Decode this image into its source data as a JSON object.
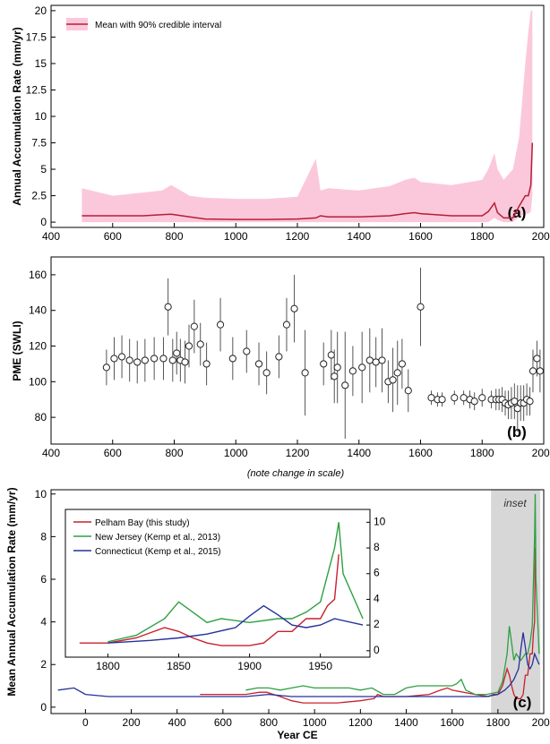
{
  "chart_data": [
    {
      "panel": "(a)",
      "type": "line",
      "ylabel": "Annual Accumulation Rate (mm/yr)",
      "xlim": [
        400,
        2000
      ],
      "ylim": [
        -0.5,
        20.5
      ],
      "x_ticks": [
        400,
        600,
        800,
        1000,
        1200,
        1400,
        1600,
        1800,
        2000
      ],
      "y_ticks": [
        "0",
        "2.5",
        "5",
        "7.5",
        "10",
        "12.5",
        "15",
        "17.5",
        "20"
      ],
      "y_tick_values": [
        0,
        2.5,
        5,
        7.5,
        10,
        12.5,
        15,
        17.5,
        20
      ],
      "legend": [
        "Mean with 90% credible interval"
      ],
      "series": [
        {
          "name": "Mean with 90% credible interval",
          "x": [
            500,
            600,
            700,
            760,
            790,
            850,
            900,
            1000,
            1100,
            1200,
            1260,
            1275,
            1300,
            1400,
            1500,
            1550,
            1580,
            1600,
            1700,
            1800,
            1820,
            1840,
            1850,
            1870,
            1900,
            1920,
            1940,
            1950,
            1958,
            1963
          ],
          "values": [
            0.6,
            0.6,
            0.6,
            0.7,
            0.75,
            0.5,
            0.3,
            0.25,
            0.25,
            0.3,
            0.4,
            0.6,
            0.5,
            0.5,
            0.6,
            0.8,
            0.9,
            0.8,
            0.6,
            0.6,
            1.0,
            1.8,
            0.9,
            0.4,
            0.4,
            1.5,
            2.5,
            2.5,
            3.5,
            7.5
          ],
          "upper": [
            3.2,
            2.5,
            2.8,
            3.0,
            3.5,
            2.5,
            2.3,
            2.2,
            2.2,
            2.4,
            6.0,
            3.0,
            3.2,
            3.0,
            3.4,
            4.0,
            4.2,
            3.8,
            3.5,
            4.0,
            5.0,
            6.5,
            5.0,
            4.0,
            5.0,
            8.0,
            15.0,
            18.0,
            20.0,
            20.0
          ],
          "lower": [
            0.0,
            0.0,
            0.0,
            0.0,
            0.0,
            0.0,
            0.0,
            0.0,
            0.0,
            0.0,
            0.0,
            0.0,
            0.0,
            0.0,
            0.0,
            0.0,
            0.0,
            0.0,
            0.0,
            0.0,
            0.0,
            0.4,
            0.2,
            0.0,
            0.0,
            0.5,
            0.8,
            0.8,
            1.0,
            2.5
          ]
        }
      ]
    },
    {
      "panel": "(b)",
      "type": "scatter",
      "ylabel": "PME (SWLI)",
      "xlabel": "(note change in scale)",
      "xlim": [
        400,
        2000
      ],
      "ylim": [
        65,
        170
      ],
      "x_ticks": [
        400,
        600,
        800,
        1000,
        1200,
        1400,
        1600,
        1800,
        2000
      ],
      "y_ticks": [
        "80",
        "100",
        "120",
        "140",
        "160"
      ],
      "y_tick_values": [
        80,
        100,
        120,
        140,
        160
      ],
      "points": [
        {
          "x": 580,
          "y": 108,
          "err": 10
        },
        {
          "x": 605,
          "y": 113,
          "err": 12
        },
        {
          "x": 630,
          "y": 114,
          "err": 12
        },
        {
          "x": 655,
          "y": 112,
          "err": 12
        },
        {
          "x": 680,
          "y": 111,
          "err": 12
        },
        {
          "x": 705,
          "y": 112,
          "err": 12
        },
        {
          "x": 735,
          "y": 113,
          "err": 12
        },
        {
          "x": 765,
          "y": 113,
          "err": 12
        },
        {
          "x": 780,
          "y": 142,
          "err": 16
        },
        {
          "x": 795,
          "y": 112,
          "err": 12
        },
        {
          "x": 808,
          "y": 116,
          "err": 12
        },
        {
          "x": 820,
          "y": 112,
          "err": 12
        },
        {
          "x": 835,
          "y": 111,
          "err": 12
        },
        {
          "x": 848,
          "y": 120,
          "err": 12
        },
        {
          "x": 865,
          "y": 131,
          "err": 15
        },
        {
          "x": 885,
          "y": 121,
          "err": 12
        },
        {
          "x": 905,
          "y": 110,
          "err": 12
        },
        {
          "x": 950,
          "y": 132,
          "err": 15
        },
        {
          "x": 990,
          "y": 113,
          "err": 12
        },
        {
          "x": 1035,
          "y": 117,
          "err": 12
        },
        {
          "x": 1075,
          "y": 110,
          "err": 12
        },
        {
          "x": 1100,
          "y": 105,
          "err": 12
        },
        {
          "x": 1140,
          "y": 114,
          "err": 12
        },
        {
          "x": 1165,
          "y": 132,
          "err": 15
        },
        {
          "x": 1190,
          "y": 141,
          "err": 19
        },
        {
          "x": 1225,
          "y": 105,
          "err": 24
        },
        {
          "x": 1285,
          "y": 110,
          "err": 12
        },
        {
          "x": 1310,
          "y": 115,
          "err": 14
        },
        {
          "x": 1320,
          "y": 103,
          "err": 15
        },
        {
          "x": 1330,
          "y": 108,
          "err": 20
        },
        {
          "x": 1355,
          "y": 98,
          "err": 30
        },
        {
          "x": 1380,
          "y": 106,
          "err": 14
        },
        {
          "x": 1410,
          "y": 108,
          "err": 20
        },
        {
          "x": 1435,
          "y": 112,
          "err": 18
        },
        {
          "x": 1455,
          "y": 111,
          "err": 14
        },
        {
          "x": 1475,
          "y": 112,
          "err": 18
        },
        {
          "x": 1495,
          "y": 100,
          "err": 12
        },
        {
          "x": 1510,
          "y": 101,
          "err": 18
        },
        {
          "x": 1525,
          "y": 105,
          "err": 18
        },
        {
          "x": 1540,
          "y": 110,
          "err": 14
        },
        {
          "x": 1560,
          "y": 95,
          "err": 12
        },
        {
          "x": 1600,
          "y": 142,
          "err": 22
        },
        {
          "x": 1635,
          "y": 91,
          "err": 4
        },
        {
          "x": 1655,
          "y": 90,
          "err": 4
        },
        {
          "x": 1670,
          "y": 90,
          "err": 4
        },
        {
          "x": 1710,
          "y": 91,
          "err": 4
        },
        {
          "x": 1740,
          "y": 91,
          "err": 4
        },
        {
          "x": 1760,
          "y": 90,
          "err": 5
        },
        {
          "x": 1775,
          "y": 89,
          "err": 5
        },
        {
          "x": 1800,
          "y": 91,
          "err": 5
        },
        {
          "x": 1830,
          "y": 90,
          "err": 5
        },
        {
          "x": 1845,
          "y": 90,
          "err": 6
        },
        {
          "x": 1855,
          "y": 90,
          "err": 6
        },
        {
          "x": 1865,
          "y": 90,
          "err": 7
        },
        {
          "x": 1875,
          "y": 88,
          "err": 7
        },
        {
          "x": 1885,
          "y": 87,
          "err": 8
        },
        {
          "x": 1895,
          "y": 88,
          "err": 9
        },
        {
          "x": 1905,
          "y": 89,
          "err": 10
        },
        {
          "x": 1915,
          "y": 85,
          "err": 13
        },
        {
          "x": 1925,
          "y": 88,
          "err": 10
        },
        {
          "x": 1935,
          "y": 88,
          "err": 10
        },
        {
          "x": 1945,
          "y": 90,
          "err": 9
        },
        {
          "x": 1955,
          "y": 89,
          "err": 8
        },
        {
          "x": 1965,
          "y": 106,
          "err": 12
        },
        {
          "x": 1978,
          "y": 113,
          "err": 10
        },
        {
          "x": 1988,
          "y": 106,
          "err": 12
        }
      ]
    },
    {
      "panel": "(c)",
      "type": "line",
      "ylabel": "Mean Annual Accumulation Rate (mm/yr)",
      "xlabel": "Year CE",
      "xlim": [
        -150,
        2000
      ],
      "ylim": [
        -0.3,
        10.2
      ],
      "x_ticks": [
        0,
        200,
        400,
        600,
        800,
        1000,
        1200,
        1400,
        1600,
        1800,
        2000
      ],
      "y_ticks": [
        "0",
        "2",
        "4",
        "6",
        "8",
        "10"
      ],
      "y_tick_values": [
        0,
        2,
        4,
        6,
        8,
        10
      ],
      "shaded_region": {
        "label": "inset",
        "x": [
          1770,
          1985
        ]
      },
      "series": [
        {
          "name": "Pelham Bay (this study)",
          "color": "#c8202f",
          "x": [
            500,
            600,
            700,
            760,
            790,
            850,
            900,
            950,
            1000,
            1050,
            1100,
            1200,
            1260,
            1275,
            1300,
            1400,
            1500,
            1550,
            1580,
            1600,
            1700,
            1760,
            1780,
            1800,
            1820,
            1840,
            1850,
            1860,
            1870,
            1880,
            1900,
            1910,
            1920,
            1930,
            1940,
            1950,
            1955,
            1960,
            1963
          ],
          "values": [
            0.6,
            0.6,
            0.6,
            0.7,
            0.7,
            0.5,
            0.3,
            0.2,
            0.2,
            0.2,
            0.2,
            0.3,
            0.4,
            0.6,
            0.5,
            0.5,
            0.6,
            0.8,
            0.9,
            0.8,
            0.6,
            0.5,
            0.6,
            0.6,
            1.0,
            1.8,
            1.5,
            1.0,
            0.6,
            0.4,
            0.4,
            0.6,
            1.5,
            1.5,
            2.5,
            2.5,
            3.5,
            4.0,
            7.5
          ]
        },
        {
          "name": "New Jersey (Kemp et al., 2013)",
          "color": "#2ea043",
          "x": [
            700,
            750,
            800,
            850,
            900,
            950,
            1000,
            1050,
            1100,
            1150,
            1200,
            1250,
            1300,
            1350,
            1400,
            1450,
            1500,
            1550,
            1600,
            1620,
            1640,
            1660,
            1700,
            1750,
            1800,
            1820,
            1840,
            1850,
            1860,
            1870,
            1880,
            1900,
            1920,
            1930,
            1940,
            1950,
            1960,
            1963,
            1966,
            1980
          ],
          "values": [
            0.8,
            0.9,
            0.9,
            0.8,
            0.9,
            1.0,
            0.9,
            0.9,
            0.9,
            0.9,
            0.8,
            0.9,
            0.6,
            0.6,
            0.9,
            1.0,
            1.0,
            1.0,
            1.0,
            1.1,
            1.3,
            0.8,
            0.6,
            0.6,
            0.7,
            1.2,
            2.5,
            3.8,
            3.0,
            2.2,
            2.5,
            2.2,
            2.5,
            2.5,
            3.0,
            3.8,
            8.0,
            10.0,
            6.0,
            2.5
          ]
        },
        {
          "name": "Connecticut (Kemp et al., 2015)",
          "color": "#23329a",
          "x": [
            -120,
            -50,
            0,
            100,
            200,
            300,
            400,
            500,
            600,
            700,
            800,
            900,
            1000,
            1100,
            1200,
            1300,
            1400,
            1500,
            1600,
            1700,
            1750,
            1800,
            1830,
            1850,
            1870,
            1890,
            1900,
            1910,
            1920,
            1930,
            1940,
            1950,
            1960,
            1980
          ],
          "values": [
            0.8,
            0.9,
            0.6,
            0.5,
            0.5,
            0.5,
            0.5,
            0.5,
            0.5,
            0.5,
            0.6,
            0.5,
            0.5,
            0.5,
            0.5,
            0.5,
            0.5,
            0.5,
            0.5,
            0.5,
            0.5,
            0.6,
            0.8,
            1.0,
            1.3,
            1.8,
            2.7,
            3.5,
            2.8,
            2.0,
            1.8,
            2.0,
            2.5,
            2.0
          ]
        }
      ],
      "inset_axes": {
        "xlim": [
          1770,
          1985
        ],
        "ylim": [
          -0.5,
          11
        ],
        "x_ticks": [
          1800,
          1850,
          1900,
          1950
        ],
        "y_ticks": [
          "0",
          "2",
          "4",
          "6",
          "8",
          "10"
        ],
        "y_tick_values": [
          0,
          2,
          4,
          6,
          8,
          10
        ],
        "legend": [
          "Pelham Bay (this study)",
          "New Jersey (Kemp et al., 2013)",
          "Connecticut (Kemp et al., 2015)"
        ]
      }
    }
  ]
}
